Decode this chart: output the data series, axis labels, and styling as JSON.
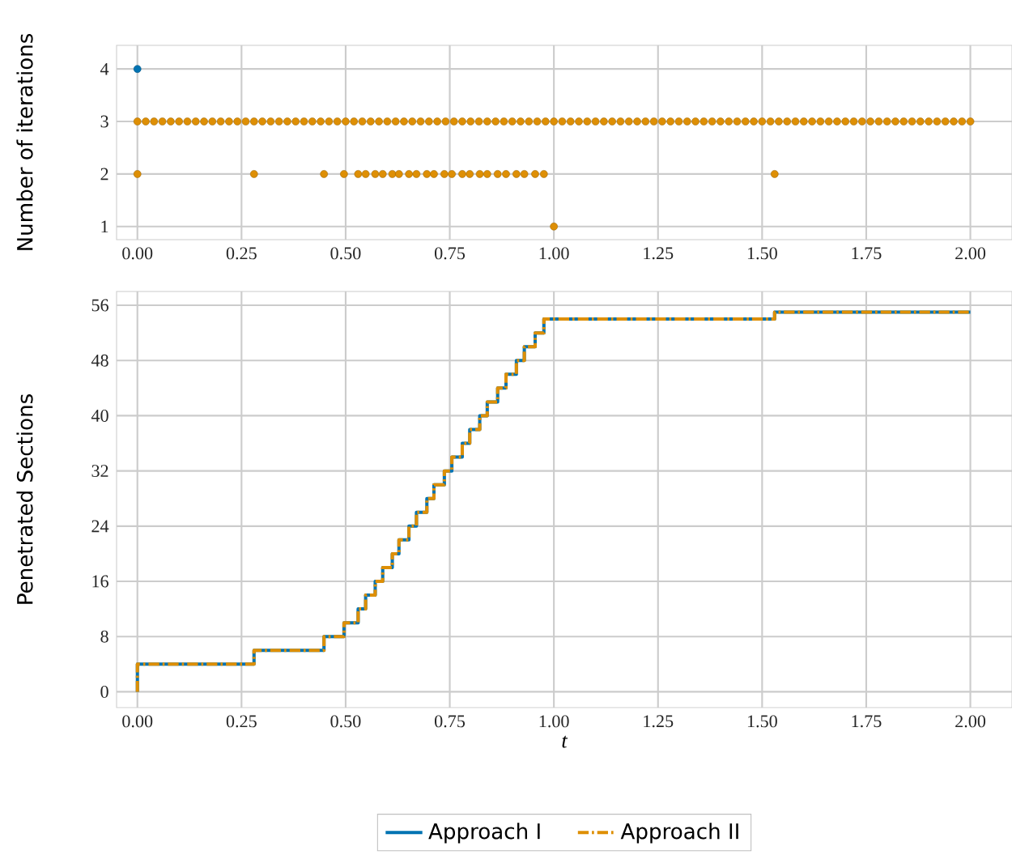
{
  "chart_data": [
    {
      "type": "scatter",
      "ylabel": "Number of iterations",
      "xlim": [
        -0.05,
        2.1
      ],
      "ylim": [
        0.75,
        4.45
      ],
      "xticks": [
        {
          "value": 0,
          "label": "0.00"
        },
        {
          "value": 0.25,
          "label": "0.25"
        },
        {
          "value": 0.5,
          "label": "0.50"
        },
        {
          "value": 0.75,
          "label": "0.75"
        },
        {
          "value": 1,
          "label": "1.00"
        },
        {
          "value": 1.25,
          "label": "1.25"
        },
        {
          "value": 1.5,
          "label": "1.50"
        },
        {
          "value": 1.75,
          "label": "1.75"
        },
        {
          "value": 2,
          "label": "2.00"
        }
      ],
      "yticks": [
        1,
        2,
        3,
        4
      ],
      "grid": true,
      "marker": "circle",
      "series": [
        {
          "color": "#0173b2",
          "x": [
            0
          ],
          "values": [
            4
          ]
        },
        {
          "color": "#de8f05",
          "x": [
            0,
            0.02,
            0.04,
            0.06,
            0.08,
            0.1,
            0.12,
            0.14,
            0.16,
            0.18,
            0.2,
            0.22,
            0.24,
            0.26,
            0.28,
            0.3,
            0.32,
            0.34,
            0.36,
            0.38,
            0.4,
            0.42,
            0.44,
            0.46,
            0.48,
            0.5,
            0.52,
            0.54,
            0.56,
            0.58,
            0.6,
            0.62,
            0.64,
            0.66,
            0.68,
            0.7,
            0.72,
            0.74,
            0.76,
            0.78,
            0.8,
            0.82,
            0.84,
            0.86,
            0.88,
            0.9,
            0.92,
            0.94,
            0.96,
            0.98,
            1,
            1.02,
            1.04,
            1.06,
            1.08,
            1.1,
            1.12,
            1.14,
            1.16,
            1.18,
            1.2,
            1.22,
            1.24,
            1.26,
            1.28,
            1.3,
            1.32,
            1.34,
            1.36,
            1.38,
            1.4,
            1.42,
            1.44,
            1.46,
            1.48,
            1.5,
            1.52,
            1.54,
            1.56,
            1.58,
            1.6,
            1.62,
            1.64,
            1.66,
            1.68,
            1.7,
            1.72,
            1.74,
            1.76,
            1.78,
            1.8,
            1.82,
            1.84,
            1.86,
            1.88,
            1.9,
            1.92,
            1.94,
            1.96,
            1.98,
            2,
            0,
            0.28,
            0.448,
            0.496,
            0.53,
            0.548,
            0.571,
            0.589,
            0.612,
            0.628,
            0.652,
            0.67,
            0.695,
            0.712,
            0.737,
            0.755,
            0.78,
            0.798,
            0.822,
            0.84,
            0.865,
            0.885,
            0.91,
            0.929,
            0.955,
            0.976,
            1.53,
            1.0
          ],
          "values": [
            3,
            3,
            3,
            3,
            3,
            3,
            3,
            3,
            3,
            3,
            3,
            3,
            3,
            3,
            3,
            3,
            3,
            3,
            3,
            3,
            3,
            3,
            3,
            3,
            3,
            3,
            3,
            3,
            3,
            3,
            3,
            3,
            3,
            3,
            3,
            3,
            3,
            3,
            3,
            3,
            3,
            3,
            3,
            3,
            3,
            3,
            3,
            3,
            3,
            3,
            3,
            3,
            3,
            3,
            3,
            3,
            3,
            3,
            3,
            3,
            3,
            3,
            3,
            3,
            3,
            3,
            3,
            3,
            3,
            3,
            3,
            3,
            3,
            3,
            3,
            3,
            3,
            3,
            3,
            3,
            3,
            3,
            3,
            3,
            3,
            3,
            3,
            3,
            3,
            3,
            3,
            3,
            3,
            3,
            3,
            3,
            3,
            3,
            3,
            3,
            3,
            2,
            2,
            2,
            2,
            2,
            2,
            2,
            2,
            2,
            2,
            2,
            2,
            2,
            2,
            2,
            2,
            2,
            2,
            2,
            2,
            2,
            2,
            2,
            2,
            2,
            2,
            2,
            1
          ]
        }
      ]
    },
    {
      "type": "step",
      "xlabel": "t",
      "ylabel": "Penetrated Sections",
      "xlim": [
        -0.05,
        2.1
      ],
      "ylim": [
        -2.3,
        58
      ],
      "xticks": [
        {
          "value": 0,
          "label": "0.00"
        },
        {
          "value": 0.25,
          "label": "0.25"
        },
        {
          "value": 0.5,
          "label": "0.50"
        },
        {
          "value": 0.75,
          "label": "0.75"
        },
        {
          "value": 1,
          "label": "1.00"
        },
        {
          "value": 1.25,
          "label": "1.25"
        },
        {
          "value": 1.5,
          "label": "1.50"
        },
        {
          "value": 1.75,
          "label": "1.75"
        },
        {
          "value": 2,
          "label": "2.00"
        }
      ],
      "yticks": [
        0,
        8,
        16,
        24,
        32,
        40,
        48,
        56
      ],
      "grid": true,
      "legend": "bottom",
      "series": [
        {
          "name": "Approach I",
          "color": "#0173b2",
          "line_style": "solid",
          "x": [
            0,
            0,
            0.28,
            0.448,
            0.496,
            0.53,
            0.548,
            0.571,
            0.589,
            0.612,
            0.628,
            0.652,
            0.67,
            0.695,
            0.712,
            0.737,
            0.755,
            0.78,
            0.798,
            0.822,
            0.84,
            0.865,
            0.885,
            0.91,
            0.929,
            0.955,
            0.976,
            1.53,
            2.0
          ],
          "values": [
            0,
            4,
            6,
            8,
            10,
            12,
            14,
            16,
            18,
            20,
            22,
            24,
            26,
            28,
            30,
            32,
            34,
            36,
            38,
            40,
            42,
            44,
            46,
            48,
            50,
            52,
            54,
            55,
            55
          ]
        },
        {
          "name": "Approach II",
          "color": "#de8f05",
          "line_style": "dashdot",
          "x": [
            0,
            0,
            0.28,
            0.448,
            0.496,
            0.53,
            0.548,
            0.571,
            0.589,
            0.612,
            0.628,
            0.652,
            0.67,
            0.695,
            0.712,
            0.737,
            0.755,
            0.78,
            0.798,
            0.822,
            0.84,
            0.865,
            0.885,
            0.91,
            0.929,
            0.955,
            0.976,
            1.53,
            2.0
          ],
          "values": [
            0,
            4,
            6,
            8,
            10,
            12,
            14,
            16,
            18,
            20,
            22,
            24,
            26,
            28,
            30,
            32,
            34,
            36,
            38,
            40,
            42,
            44,
            46,
            48,
            50,
            52,
            54,
            55,
            55
          ]
        }
      ]
    }
  ]
}
